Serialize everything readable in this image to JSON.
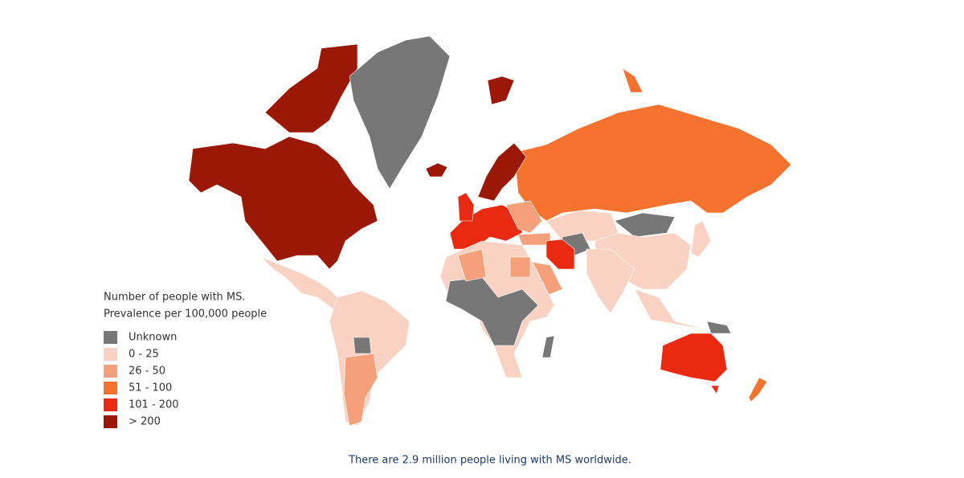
{
  "legend": {
    "title_lines": [
      "Number of people with MS.",
      "Prevalence per 100,000 people"
    ],
    "items": [
      {
        "label": "Unknown",
        "color": "#777777"
      },
      {
        "label": "0 - 25",
        "color": "#f9d2c3"
      },
      {
        "label": "26 - 50",
        "color": "#f6a07b"
      },
      {
        "label": "51 - 100",
        "color": "#f5732f"
      },
      {
        "label": "101 - 200",
        "color": "#ea2a10"
      },
      {
        "label": "> 200",
        "color": "#9c1806"
      }
    ]
  },
  "caption": "There are 2.9 million people living with MS worldwide."
}
